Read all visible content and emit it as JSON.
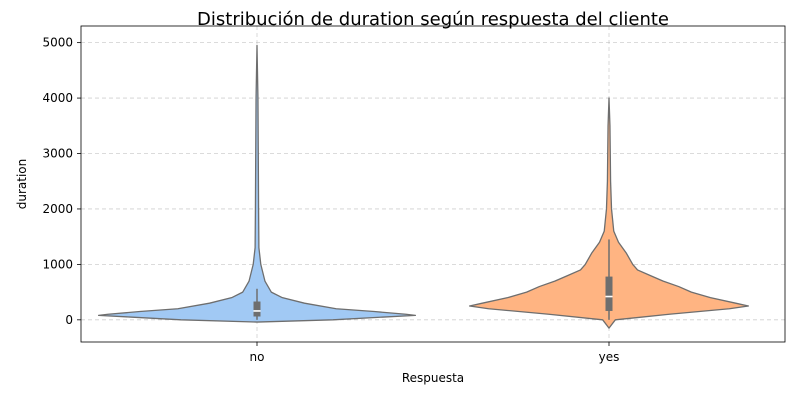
{
  "chart_data": {
    "type": "violin",
    "title": "Distribución de duration según respuesta del cliente",
    "xlabel": "Respuesta",
    "ylabel": "duration",
    "categories": [
      "no",
      "yes"
    ],
    "ylim": [
      -400,
      5300
    ],
    "yticks": [
      0,
      1000,
      2000,
      3000,
      4000,
      5000
    ],
    "grid": true,
    "series": [
      {
        "category": "no",
        "color": "#a1c9f4",
        "min": -40,
        "max": 4950,
        "q1": 60,
        "median": 160,
        "q3": 330,
        "whisker_low": 0,
        "whisker_high": 560,
        "density": [
          [
            -40,
            0.0
          ],
          [
            0,
            0.24
          ],
          [
            50,
            0.4
          ],
          [
            80,
            0.5
          ],
          [
            100,
            0.47
          ],
          [
            150,
            0.37
          ],
          [
            200,
            0.25
          ],
          [
            300,
            0.15
          ],
          [
            400,
            0.08
          ],
          [
            500,
            0.045
          ],
          [
            700,
            0.025
          ],
          [
            1000,
            0.012
          ],
          [
            1300,
            0.006
          ],
          [
            2000,
            0.005
          ],
          [
            3000,
            0.004
          ],
          [
            4000,
            0.003
          ],
          [
            4950,
            0.0
          ]
        ]
      },
      {
        "category": "yes",
        "color": "#ffb482",
        "min": -150,
        "max": 4000,
        "q1": 160,
        "median": 420,
        "q3": 780,
        "whisker_low": 0,
        "whisker_high": 1450,
        "density": [
          [
            -150,
            0.0
          ],
          [
            0,
            0.02
          ],
          [
            100,
            0.19
          ],
          [
            200,
            0.38
          ],
          [
            250,
            0.44
          ],
          [
            300,
            0.4
          ],
          [
            400,
            0.32
          ],
          [
            500,
            0.26
          ],
          [
            600,
            0.22
          ],
          [
            700,
            0.17
          ],
          [
            800,
            0.13
          ],
          [
            900,
            0.09
          ],
          [
            1000,
            0.075
          ],
          [
            1200,
            0.055
          ],
          [
            1400,
            0.03
          ],
          [
            1600,
            0.015
          ],
          [
            2000,
            0.008
          ],
          [
            2500,
            0.005
          ],
          [
            3000,
            0.004
          ],
          [
            3500,
            0.003
          ],
          [
            4000,
            0.0
          ]
        ]
      }
    ]
  }
}
